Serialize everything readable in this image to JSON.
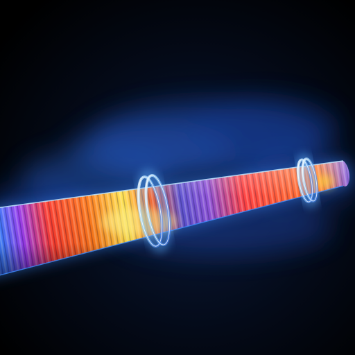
{
  "scene": {
    "subject": "thermal-pipe",
    "palette": {
      "background": "#02040a",
      "glow": "#2f7dff",
      "mist": "#3a6fd8",
      "hot_core": "#ffe24a",
      "hot": "#ff5a1a",
      "warm": "#ff2e2e",
      "cool": "#6b5bd6",
      "cold": "#2a9cff",
      "ring": "#cfe8ff"
    }
  }
}
